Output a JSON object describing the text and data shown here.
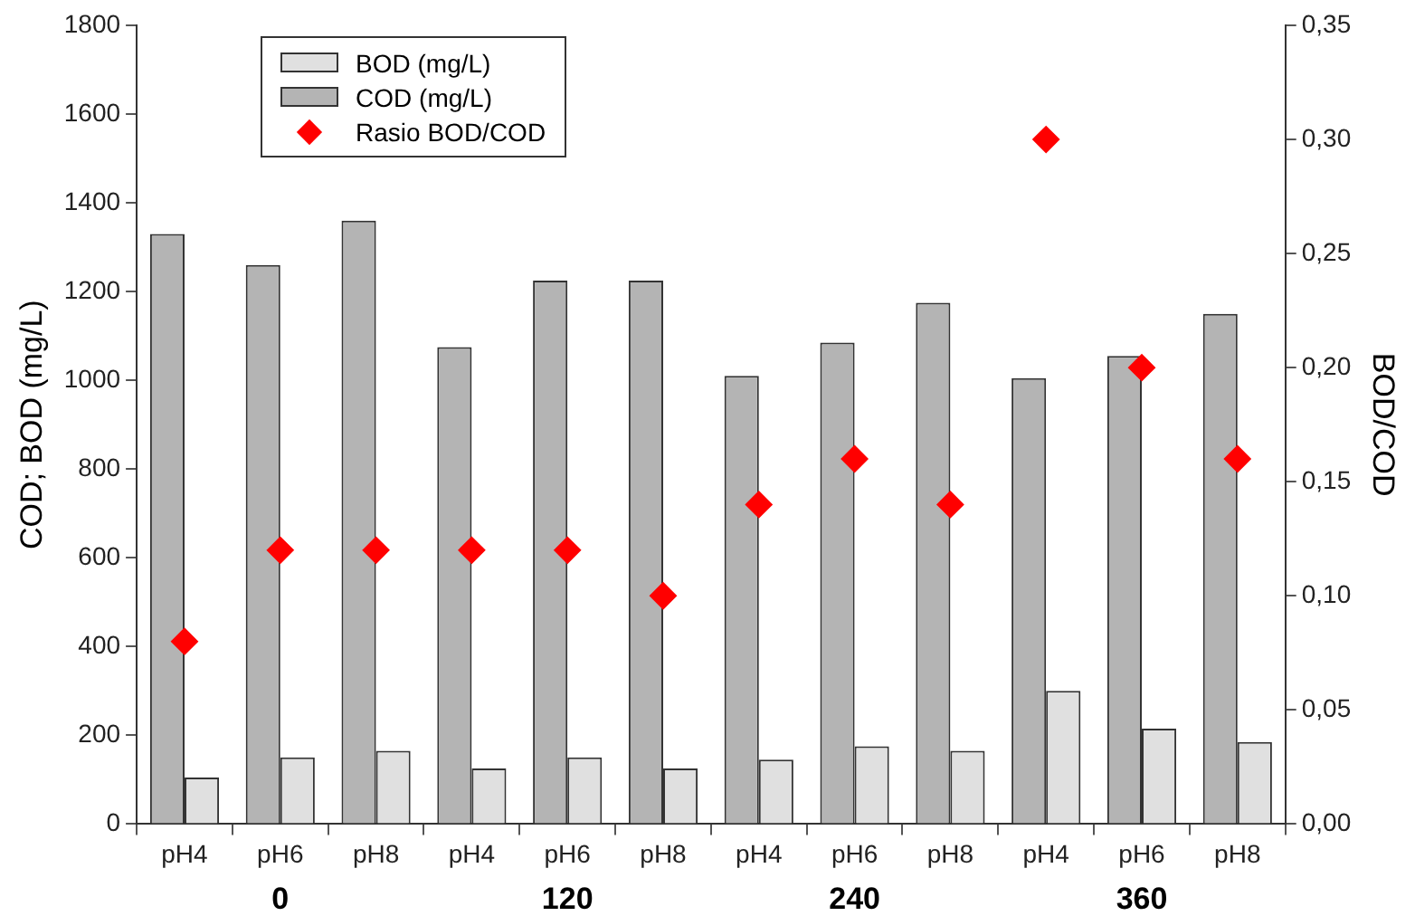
{
  "chart_data": {
    "type": "bar",
    "xlabel": null,
    "ylabel": "COD; BOD (mg/L)",
    "y2label": "BOD/COD",
    "categories": [
      "pH4",
      "pH6",
      "pH8",
      "pH4",
      "pH6",
      "pH8",
      "pH4",
      "pH6",
      "pH8",
      "pH4",
      "pH6",
      "pH8"
    ],
    "series": [
      {
        "name": "BOD (mg/L)",
        "color": "#e0e0e0",
        "values": [
          105,
          150,
          165,
          125,
          150,
          125,
          145,
          175,
          165,
          300,
          215,
          185
        ]
      },
      {
        "name": "COD (mg/L)",
        "color": "#b4b4b4",
        "values": [
          1330,
          1260,
          1360,
          1075,
          1225,
          1225,
          1010,
          1085,
          1175,
          1005,
          1055,
          1150
        ]
      },
      {
        "name": "Rasio BOD/COD",
        "type": "scatter",
        "axis": "y2",
        "color": "#ff0000",
        "marker": "diamond",
        "values": [
          0.08,
          0.12,
          0.12,
          0.12,
          0.12,
          0.1,
          0.14,
          0.16,
          0.14,
          0.3,
          0.2,
          0.16
        ]
      }
    ],
    "annotations": [
      "0",
      "120",
      "240",
      "360"
    ],
    "ylim": [
      0,
      1800
    ],
    "yticks": [
      0,
      200,
      400,
      600,
      800,
      1000,
      1200,
      1400,
      1600,
      1800
    ],
    "y2lim": [
      0,
      0.35
    ],
    "y2ticks": [
      {
        "value": 0,
        "label": "0,00"
      },
      {
        "value": 0.05,
        "label": "0,05"
      },
      {
        "value": 0.1,
        "label": "0,10"
      },
      {
        "value": 0.15,
        "label": "0,15"
      },
      {
        "value": 0.2,
        "label": "0,20"
      },
      {
        "value": 0.25,
        "label": "0,25"
      },
      {
        "value": 0.3,
        "label": "0,30"
      },
      {
        "value": 0.35,
        "label": "0,35"
      }
    ],
    "grid": false,
    "legend": "top left"
  }
}
